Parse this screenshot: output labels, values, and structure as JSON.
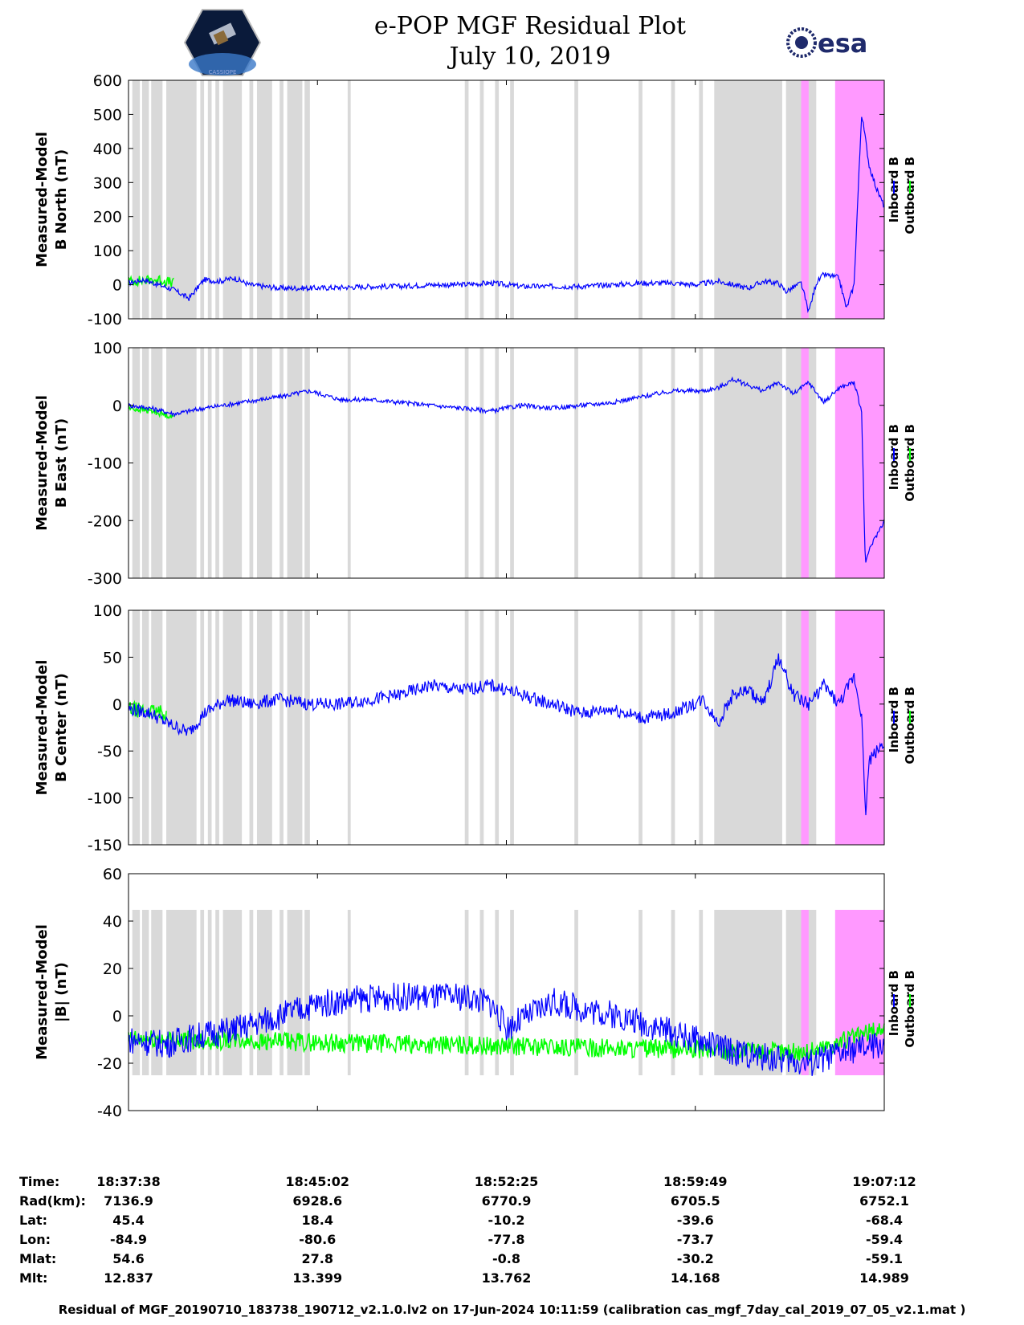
{
  "header": {
    "title": "e-POP MGF Residual Plot",
    "date": "July 10, 2019",
    "logo_left_text": "CASSIOPE",
    "logo_right_text": "esa"
  },
  "colors": {
    "inboard": "#0000ff",
    "outboard": "#00ff00",
    "gray_band": "#d9d9d9",
    "pink_band": "#ff99ff"
  },
  "chart_data": [
    {
      "type": "line",
      "id": "north",
      "ylabel_lines": [
        "Measured-Model",
        "B North (nT)"
      ],
      "ylim": [
        -100,
        600
      ],
      "yticks": [
        -100,
        0,
        100,
        200,
        300,
        400,
        500,
        600
      ],
      "legend": [
        "Inboard B",
        "Outboard B"
      ],
      "series": [
        {
          "name": "Inboard B",
          "t": [
            0,
            0.02,
            0.04,
            0.06,
            0.08,
            0.1,
            0.12,
            0.14,
            0.16,
            0.18,
            0.2,
            0.24,
            0.28,
            0.32,
            0.36,
            0.4,
            0.44,
            0.48,
            0.5,
            0.52,
            0.56,
            0.6,
            0.64,
            0.68,
            0.72,
            0.75,
            0.78,
            0.8,
            0.82,
            0.84,
            0.86,
            0.87,
            0.89,
            0.9,
            0.91,
            0.92,
            0.94,
            0.95,
            0.96,
            0.97,
            0.975,
            0.98,
            0.99,
            1.0
          ],
          "v": [
            5,
            15,
            0,
            -15,
            -40,
            15,
            10,
            20,
            0,
            -5,
            -10,
            -10,
            -8,
            -5,
            -5,
            0,
            0,
            5,
            0,
            -5,
            -5,
            -5,
            0,
            5,
            5,
            0,
            10,
            0,
            -10,
            10,
            5,
            -20,
            5,
            -80,
            5,
            30,
            20,
            -70,
            0,
            500,
            430,
            350,
            280,
            230
          ],
          "noise": 8
        },
        {
          "name": "Outboard B",
          "t": [
            0,
            0.04,
            0.06
          ],
          "v": [
            10,
            15,
            5
          ],
          "noise": 15
        }
      ]
    },
    {
      "type": "line",
      "id": "east",
      "ylabel_lines": [
        "Measured-Model",
        "B East (nT)"
      ],
      "ylim": [
        -300,
        100
      ],
      "yticks": [
        -300,
        -200,
        -100,
        0,
        100
      ],
      "legend": [
        "Inboard B",
        "Outboard B"
      ],
      "series": [
        {
          "name": "Inboard B",
          "t": [
            0,
            0.03,
            0.06,
            0.1,
            0.15,
            0.2,
            0.24,
            0.28,
            0.32,
            0.36,
            0.4,
            0.44,
            0.48,
            0.5,
            0.52,
            0.56,
            0.6,
            0.64,
            0.68,
            0.72,
            0.76,
            0.78,
            0.8,
            0.82,
            0.84,
            0.86,
            0.88,
            0.9,
            0.92,
            0.94,
            0.96,
            0.97,
            0.975,
            0.98,
            1.0
          ],
          "v": [
            0,
            -5,
            -15,
            -5,
            5,
            15,
            25,
            10,
            10,
            5,
            0,
            -5,
            -10,
            -5,
            0,
            -5,
            0,
            5,
            15,
            25,
            25,
            30,
            45,
            35,
            25,
            40,
            20,
            40,
            5,
            30,
            40,
            -10,
            -280,
            -250,
            -200
          ],
          "noise": 4
        },
        {
          "name": "Outboard B",
          "t": [
            0,
            0.03,
            0.06
          ],
          "v": [
            -5,
            -10,
            -20
          ],
          "noise": 5
        }
      ]
    },
    {
      "type": "line",
      "id": "center",
      "ylabel_lines": [
        "Measured-Model",
        "B Center (nT)"
      ],
      "ylim": [
        -150,
        100
      ],
      "yticks": [
        -150,
        -100,
        -50,
        0,
        50,
        100
      ],
      "legend": [
        "Inboard B",
        "Outboard B"
      ],
      "series": [
        {
          "name": "Inboard B",
          "t": [
            0,
            0.03,
            0.05,
            0.08,
            0.1,
            0.13,
            0.16,
            0.2,
            0.24,
            0.28,
            0.32,
            0.36,
            0.4,
            0.44,
            0.48,
            0.52,
            0.56,
            0.6,
            0.64,
            0.68,
            0.72,
            0.76,
            0.78,
            0.8,
            0.82,
            0.84,
            0.86,
            0.88,
            0.9,
            0.92,
            0.94,
            0.96,
            0.97,
            0.975,
            0.98,
            1.0
          ],
          "v": [
            -5,
            -10,
            -20,
            -30,
            -10,
            5,
            0,
            5,
            0,
            0,
            5,
            10,
            20,
            15,
            20,
            10,
            0,
            -10,
            -5,
            -15,
            -10,
            5,
            -20,
            10,
            15,
            0,
            50,
            10,
            0,
            20,
            0,
            30,
            -10,
            -120,
            -60,
            -40
          ],
          "noise": 7
        },
        {
          "name": "Outboard B",
          "t": [
            0,
            0.03,
            0.05
          ],
          "v": [
            -5,
            -8,
            -10
          ],
          "noise": 8
        }
      ]
    },
    {
      "type": "line",
      "id": "total",
      "ylabel_lines": [
        "Measured-Model",
        "|B| (nT)"
      ],
      "ylim": [
        -40,
        60
      ],
      "yticks": [
        -40,
        -20,
        0,
        20,
        40,
        60
      ],
      "legend": [
        "Inboard B",
        "Outboard B"
      ],
      "series": [
        {
          "name": "Inboard B",
          "t": [
            0,
            0.05,
            0.07,
            0.1,
            0.15,
            0.2,
            0.25,
            0.3,
            0.35,
            0.4,
            0.45,
            0.48,
            0.5,
            0.53,
            0.56,
            0.6,
            0.65,
            0.7,
            0.75,
            0.8,
            0.85,
            0.9,
            0.95,
            1.0
          ],
          "v": [
            -10,
            -12,
            -10,
            -8,
            -5,
            0,
            5,
            7,
            8,
            8,
            8,
            5,
            -5,
            0,
            6,
            3,
            0,
            -5,
            -10,
            -15,
            -18,
            -20,
            -15,
            -12
          ],
          "noise": 6
        },
        {
          "name": "Outboard B",
          "t": [
            0,
            0.05,
            0.85,
            0.9,
            0.95,
            1.0
          ],
          "v": [
            -10,
            -10,
            -15,
            -15,
            -10,
            -5
          ],
          "noise": 4
        }
      ]
    }
  ],
  "shading": {
    "gray": [
      [
        0.005,
        0.015
      ],
      [
        0.018,
        0.027
      ],
      [
        0.03,
        0.045
      ],
      [
        0.05,
        0.09
      ],
      [
        0.095,
        0.1
      ],
      [
        0.105,
        0.11
      ],
      [
        0.115,
        0.12
      ],
      [
        0.125,
        0.15
      ],
      [
        0.16,
        0.165
      ],
      [
        0.17,
        0.19
      ],
      [
        0.2,
        0.205
      ],
      [
        0.21,
        0.23
      ],
      [
        0.233,
        0.24
      ],
      [
        0.29,
        0.294
      ],
      [
        0.445,
        0.45
      ],
      [
        0.465,
        0.47
      ],
      [
        0.485,
        0.49
      ],
      [
        0.505,
        0.51
      ],
      [
        0.59,
        0.595
      ],
      [
        0.675,
        0.68
      ],
      [
        0.718,
        0.723
      ],
      [
        0.755,
        0.76
      ],
      [
        0.775,
        0.865
      ],
      [
        0.87,
        0.91
      ]
    ],
    "pink": [
      [
        0.89,
        0.9
      ],
      [
        0.935,
        1.0
      ]
    ]
  },
  "time_axis": {
    "labels": [
      "18:37:38",
      "18:45:02",
      "18:52:25",
      "18:59:49",
      "19:07:12"
    ]
  },
  "info_rows": [
    {
      "label": "Time:",
      "values": [
        "18:37:38",
        "18:45:02",
        "18:52:25",
        "18:59:49",
        "19:07:12"
      ]
    },
    {
      "label": "Rad(km):",
      "values": [
        "7136.9",
        "6928.6",
        "6770.9",
        "6705.5",
        "6752.1"
      ]
    },
    {
      "label": "Lat:",
      "values": [
        "45.4",
        "18.4",
        "-10.2",
        "-39.6",
        "-68.4"
      ]
    },
    {
      "label": "Lon:",
      "values": [
        "-84.9",
        "-80.6",
        "-77.8",
        "-73.7",
        "-59.4"
      ]
    },
    {
      "label": "Mlat:",
      "values": [
        "54.6",
        "27.8",
        "-0.8",
        "-30.2",
        "-59.1"
      ]
    },
    {
      "label": "Mlt:",
      "values": [
        "12.837",
        "13.399",
        "13.762",
        "14.168",
        "14.989"
      ]
    }
  ],
  "footer": "Residual of MGF_20190710_183738_190712_v2.1.0.lv2 on 17-Jun-2024 10:11:59 (calibration cas_mgf_7day_cal_2019_07_05_v2.1.mat )"
}
